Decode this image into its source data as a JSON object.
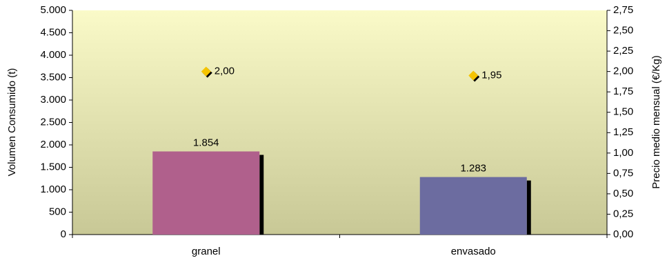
{
  "chart_data": {
    "type": "bar",
    "y_label": "Volumen Consumido (t)",
    "y2_label": "Precio medio mensual (€/Kg)",
    "categories": [
      "granel",
      "envasado"
    ],
    "series": [
      {
        "type": "bar",
        "colors": [
          "#b0608c",
          "#6c6ca0"
        ],
        "values": [
          1854,
          1283
        ],
        "value_labels": [
          "1.854",
          "1.283"
        ]
      },
      {
        "type": "scatter",
        "axis": "y2",
        "color": "#f5c400",
        "values": [
          2,
          1.95
        ],
        "value_labels": [
          "2,00",
          "1,95"
        ]
      }
    ],
    "ylim": [
      0,
      5000
    ],
    "yticks": [
      0,
      500,
      {
        "value": 1000,
        "label": "1.000"
      },
      {
        "value": 1500,
        "label": "1.500"
      },
      {
        "value": 2000,
        "label": "2.000"
      },
      {
        "value": 2500,
        "label": "2.500"
      },
      {
        "value": 3000,
        "label": "3.000"
      },
      {
        "value": 3500,
        "label": "3.500"
      },
      {
        "value": 4000,
        "label": "4.000"
      },
      {
        "value": 4500,
        "label": "4.500"
      },
      {
        "value": 5000,
        "label": "5.000"
      }
    ],
    "y2lim": [
      0,
      2.75
    ],
    "y2ticks": [
      {
        "value": 0,
        "label": "0,00"
      },
      {
        "value": 0.25,
        "label": "0,25"
      },
      {
        "value": 0.5,
        "label": "0,50"
      },
      {
        "value": 0.75,
        "label": "0,75"
      },
      {
        "value": 1,
        "label": "1,00"
      },
      {
        "value": 1.25,
        "label": "1,25"
      },
      {
        "value": 1.5,
        "label": "1,50"
      },
      {
        "value": 1.75,
        "label": "1,75"
      },
      {
        "value": 2,
        "label": "2,00"
      },
      {
        "value": 2.25,
        "label": "2,25"
      },
      {
        "value": 2.5,
        "label": "2,50"
      },
      {
        "value": 2.75,
        "label": "2,75"
      }
    ]
  }
}
